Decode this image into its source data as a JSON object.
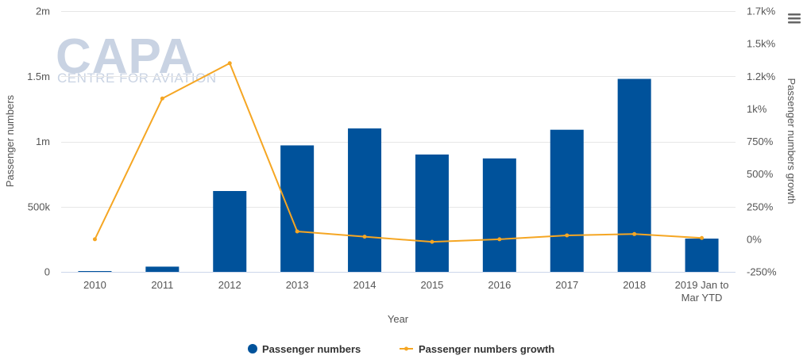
{
  "watermark": {
    "brand": "CAPA",
    "subtitle": "CENTRE FOR AVIATION"
  },
  "menu_icon": "hamburger-menu-icon",
  "chart_data": {
    "type": "bar",
    "title": "",
    "categories": [
      "2010",
      "2011",
      "2012",
      "2013",
      "2014",
      "2015",
      "2016",
      "2017",
      "2018",
      "2019 Jan to Mar YTD"
    ],
    "series": [
      {
        "name": "Passenger numbers",
        "type": "bar",
        "axis": "left",
        "color": "#00529b",
        "values": [
          5000,
          40000,
          620000,
          970000,
          1100000,
          900000,
          870000,
          1090000,
          1480000,
          255000
        ]
      },
      {
        "name": "Passenger numbers growth",
        "type": "line",
        "axis": "right",
        "color": "#f5a623",
        "values": [
          0,
          1080,
          1350,
          60,
          20,
          -20,
          0,
          30,
          40,
          10
        ]
      }
    ],
    "xlabel": "Year",
    "ylabel_left": "Passenger numbers",
    "ylabel_right": "Passenger numbers growth",
    "ylim_left": [
      0,
      2000000
    ],
    "ylim_right": [
      -250,
      1750
    ],
    "left_ticks": [
      {
        "value": 0,
        "label": "0"
      },
      {
        "value": 500000,
        "label": "500k"
      },
      {
        "value": 1000000,
        "label": "1m"
      },
      {
        "value": 1500000,
        "label": "1.5m"
      },
      {
        "value": 2000000,
        "label": "2m"
      }
    ],
    "right_ticks": [
      {
        "value": -250,
        "label": "-250%"
      },
      {
        "value": 0,
        "label": "0%"
      },
      {
        "value": 250,
        "label": "250%"
      },
      {
        "value": 500,
        "label": "500%"
      },
      {
        "value": 750,
        "label": "750%"
      },
      {
        "value": 1000,
        "label": "1k%"
      },
      {
        "value": 1250,
        "label": "1.2k%"
      },
      {
        "value": 1500,
        "label": "1.5k%"
      },
      {
        "value": 1750,
        "label": "1.7k%"
      }
    ],
    "grid": true,
    "legend_position": "bottom"
  }
}
